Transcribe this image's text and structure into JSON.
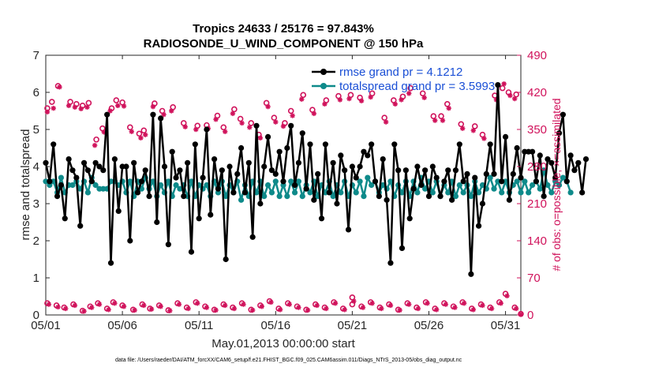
{
  "chart_data": {
    "type": "line",
    "title": "Tropics 24633 / 25176 = 97.843%",
    "subtitle": "RADIOSONDE_U_WIND_COMPONENT @ 150 hPa",
    "xlabel": "May.01,2013 00:00:00 start",
    "ylabel_left": "rmse and totalspread",
    "ylabel_right": "# of obs: o=possible; ×=assimilated",
    "footnote": "data file: /Users/raeder/DAI/ATM_forcXX/CAM6_setup/f.e21.FHIST_BGC.f09_025.CAM6assim.011/Diags_NTrS_2013-05/obs_diag_output.nc",
    "x_ticks": [
      1,
      6,
      11,
      16,
      21,
      26,
      31
    ],
    "x_tick_labels": [
      "05/01",
      "05/06",
      "05/11",
      "05/16",
      "05/21",
      "05/26",
      "05/31"
    ],
    "xlim": [
      1,
      32
    ],
    "ylim_left": [
      0,
      7
    ],
    "y_ticks_left": [
      0,
      1,
      2,
      3,
      4,
      5,
      6,
      7
    ],
    "ylim_right": [
      0,
      490
    ],
    "y_ticks_right": [
      0,
      70,
      140,
      210,
      280,
      350,
      420,
      490
    ],
    "colors": {
      "rmse": "#000000",
      "spread": "#0e8a8a",
      "obs": "#d0125b",
      "legend_text": "#1a4fd6"
    },
    "series": [
      {
        "name": "rmse",
        "legend": "rmse grand pr = 4.1212",
        "axis": "left",
        "values": [
          4.1,
          3.6,
          4.6,
          3.2,
          3.5,
          2.6,
          4.2,
          3.9,
          3.7,
          2.4,
          4.1,
          3.9,
          3.6,
          4.1,
          4.0,
          3.9,
          5.4,
          1.4,
          4.2,
          2.8,
          4.0,
          4.0,
          2.0,
          4.1,
          3.3,
          3.6,
          3.9,
          3.2,
          5.4,
          2.5,
          5.3,
          4.0,
          1.9,
          4.4,
          3.7,
          3.9,
          3.2,
          4.1,
          1.7,
          4.6,
          2.6,
          3.7,
          5.0,
          2.7,
          4.2,
          3.4,
          3.9,
          1.5,
          4.0,
          3.3,
          3.8,
          4.5,
          3.3,
          4.1,
          2.1,
          5.1,
          3.0,
          4.0,
          4.8,
          3.9,
          3.8,
          4.4,
          3.6,
          4.5,
          5.1,
          3.5,
          4.1,
          4.9,
          3.4,
          4.6,
          3.1,
          3.8,
          2.6,
          4.6,
          3.3,
          4.1,
          3.0,
          4.3,
          3.9,
          2.3,
          4.0,
          3.7,
          4.0,
          4.4,
          4.3,
          4.6,
          3.6,
          3.2,
          4.2,
          3.1,
          1.4,
          4.6,
          3.9,
          1.8,
          3.9,
          2.6,
          3.4,
          4.0,
          3.5,
          3.9,
          3.2,
          4.0,
          3.7,
          3.2,
          3.6,
          3.9,
          3.1,
          3.9,
          4.6,
          3.6,
          3.8,
          1.1,
          3.7,
          2.4,
          3.0,
          3.8,
          4.6,
          3.8,
          6.2,
          3.6,
          4.8,
          3.1,
          3.8,
          4.5,
          3.7,
          4.4,
          4.4,
          4.4,
          3.6,
          4.3,
          3.2,
          4.2,
          4.1,
          3.7,
          4.9,
          5.4,
          3.6,
          4.3,
          3.9,
          4.1,
          3.3,
          4.2
        ],
        "values_note": "136 points at 6-hourly intervals starting 05/01 00Z"
      },
      {
        "name": "totalspread",
        "legend": "totalspread grand pr = 3.5993",
        "axis": "left",
        "values": [
          3.6,
          3.5,
          3.6,
          3.3,
          3.7,
          3.3,
          3.5,
          3.5,
          3.6,
          3.4,
          3.6,
          3.3,
          3.7,
          3.5,
          3.4,
          3.4,
          3.4,
          3.6,
          3.6,
          3.5,
          3.6,
          3.3,
          3.6,
          3.2,
          3.6,
          3.4,
          3.7,
          3.4,
          3.6,
          3.2,
          3.5,
          3.3,
          3.6,
          3.2,
          3.5,
          3.4,
          3.5,
          3.2,
          3.6,
          3.2,
          3.5,
          3.4,
          3.5,
          3.2,
          3.6,
          3.3,
          3.6,
          3.2,
          3.5,
          3.3,
          3.6,
          3.1,
          3.5,
          3.2,
          3.6,
          3.3,
          3.6,
          3.2,
          3.5,
          3.3,
          3.6,
          3.2,
          3.5,
          3.2,
          3.6,
          3.3,
          3.6,
          3.2,
          3.5,
          3.3,
          3.6,
          3.2,
          3.5,
          3.3,
          3.6,
          3.2,
          3.5,
          3.3,
          3.6,
          3.2,
          3.5,
          3.3,
          3.6,
          3.2,
          3.7,
          3.5,
          3.6,
          3.3,
          3.5,
          3.4,
          3.6,
          3.2,
          3.5,
          3.3,
          3.6,
          3.2,
          3.6,
          3.3,
          3.7,
          3.4,
          3.6,
          3.3,
          3.6,
          3.2,
          3.5,
          3.3,
          3.6,
          3.2,
          3.5,
          3.3,
          3.5,
          3.2,
          3.6,
          3.3,
          3.5,
          3.4,
          3.7,
          3.4,
          3.6,
          3.3,
          3.6,
          3.3,
          3.5,
          3.6,
          3.3,
          3.6,
          3.3,
          3.5,
          3.6,
          3.4,
          3.9,
          3.5,
          3.3,
          3.6,
          3.5,
          3.7,
          3.6,
          3.3
        ]
      },
      {
        "name": "obs possible (high)",
        "axis": "right",
        "marker": "o",
        "points": [
          [
            1.1,
            390
          ],
          [
            1.4,
            402
          ],
          [
            1.8,
            432
          ],
          [
            2.6,
            402
          ],
          [
            3.0,
            398
          ],
          [
            3.4,
            395
          ],
          [
            3.8,
            400
          ],
          [
            4.3,
            331
          ],
          [
            4.7,
            352
          ],
          [
            5.3,
            390
          ],
          [
            5.6,
            405
          ],
          [
            6.0,
            401
          ],
          [
            6.5,
            354
          ],
          [
            7.1,
            342
          ],
          [
            7.4,
            348
          ],
          [
            8.1,
            399
          ],
          [
            8.6,
            385
          ],
          [
            9.3,
            392
          ],
          [
            10.0,
            362
          ],
          [
            10.9,
            357
          ],
          [
            11.5,
            358
          ],
          [
            12.2,
            376
          ],
          [
            12.6,
            354
          ],
          [
            13.3,
            388
          ],
          [
            13.7,
            370
          ],
          [
            14.4,
            362
          ],
          [
            14.9,
            340
          ],
          [
            15.4,
            400
          ],
          [
            15.9,
            372
          ],
          [
            16.6,
            362
          ],
          [
            17.0,
            385
          ],
          [
            17.8,
            415
          ],
          [
            18.4,
            387
          ],
          [
            19.3,
            405
          ],
          [
            20.1,
            413
          ],
          [
            20.9,
            415
          ],
          [
            21.5,
            410
          ],
          [
            22.3,
            418
          ],
          [
            23.1,
            372
          ],
          [
            23.7,
            405
          ],
          [
            24.3,
            412
          ],
          [
            24.8,
            428
          ],
          [
            25.6,
            418
          ],
          [
            26.3,
            375
          ],
          [
            26.8,
            375
          ],
          [
            27.2,
            398
          ],
          [
            28.1,
            360
          ],
          [
            29.0,
            356
          ],
          [
            29.5,
            340
          ],
          [
            30.3,
            414
          ],
          [
            30.8,
            428
          ],
          [
            31.2,
            420
          ],
          [
            31.7,
            416
          ]
        ]
      },
      {
        "name": "obs assimilated (high)",
        "axis": "right",
        "marker": "asterisk",
        "points": [
          [
            1.1,
            383
          ],
          [
            1.5,
            390
          ],
          [
            1.9,
            430
          ],
          [
            2.5,
            395
          ],
          [
            2.9,
            392
          ],
          [
            3.3,
            389
          ],
          [
            3.7,
            392
          ],
          [
            4.2,
            320
          ],
          [
            4.8,
            345
          ],
          [
            5.2,
            385
          ],
          [
            5.7,
            395
          ],
          [
            6.1,
            394
          ],
          [
            6.6,
            346
          ],
          [
            7.2,
            334
          ],
          [
            7.5,
            340
          ],
          [
            8.0,
            393
          ],
          [
            8.7,
            378
          ],
          [
            9.2,
            385
          ],
          [
            10.1,
            355
          ],
          [
            10.8,
            350
          ],
          [
            11.6,
            352
          ],
          [
            12.1,
            369
          ],
          [
            12.7,
            346
          ],
          [
            13.2,
            380
          ],
          [
            13.8,
            362
          ],
          [
            14.3,
            354
          ],
          [
            15.0,
            334
          ],
          [
            15.5,
            393
          ],
          [
            16.0,
            364
          ],
          [
            16.5,
            356
          ],
          [
            17.1,
            376
          ],
          [
            17.7,
            407
          ],
          [
            18.5,
            380
          ],
          [
            19.2,
            398
          ],
          [
            20.2,
            406
          ],
          [
            20.8,
            408
          ],
          [
            21.6,
            404
          ],
          [
            22.2,
            411
          ],
          [
            23.2,
            364
          ],
          [
            23.8,
            398
          ],
          [
            24.2,
            406
          ],
          [
            24.7,
            418
          ],
          [
            25.7,
            410
          ],
          [
            26.4,
            367
          ],
          [
            26.9,
            367
          ],
          [
            27.3,
            390
          ],
          [
            28.2,
            352
          ],
          [
            28.9,
            348
          ],
          [
            29.6,
            333
          ],
          [
            30.4,
            406
          ],
          [
            30.9,
            436
          ],
          [
            31.3,
            414
          ],
          [
            31.6,
            408
          ]
        ]
      },
      {
        "name": "obs possible (low)",
        "axis": "right",
        "marker": "o",
        "points": [
          [
            1.1,
            22
          ],
          [
            1.7,
            18
          ],
          [
            2.2,
            14
          ],
          [
            2.8,
            20
          ],
          [
            3.4,
            8
          ],
          [
            3.9,
            16
          ],
          [
            4.4,
            22
          ],
          [
            5.0,
            12
          ],
          [
            5.4,
            24
          ],
          [
            6.0,
            18
          ],
          [
            6.7,
            10
          ],
          [
            7.3,
            20
          ],
          [
            7.8,
            12
          ],
          [
            8.4,
            18
          ],
          [
            9.0,
            9
          ],
          [
            9.6,
            22
          ],
          [
            10.2,
            14
          ],
          [
            10.8,
            24
          ],
          [
            11.4,
            16
          ],
          [
            12.0,
            10
          ],
          [
            12.6,
            20
          ],
          [
            13.2,
            14
          ],
          [
            13.8,
            22
          ],
          [
            14.4,
            10
          ],
          [
            15.0,
            18
          ],
          [
            15.6,
            26
          ],
          [
            16.2,
            12
          ],
          [
            16.8,
            22
          ],
          [
            17.4,
            16
          ],
          [
            18.0,
            10
          ],
          [
            18.6,
            20
          ],
          [
            19.2,
            14
          ],
          [
            19.8,
            24
          ],
          [
            20.4,
            12
          ],
          [
            21.0,
            20
          ],
          [
            21.0,
            33
          ],
          [
            21.6,
            16
          ],
          [
            22.2,
            24
          ],
          [
            22.8,
            14
          ],
          [
            23.4,
            20
          ],
          [
            24.0,
            10
          ],
          [
            24.6,
            22
          ],
          [
            25.2,
            14
          ],
          [
            25.8,
            24
          ],
          [
            26.4,
            12
          ],
          [
            27.0,
            22
          ],
          [
            27.6,
            16
          ],
          [
            28.2,
            24
          ],
          [
            28.8,
            12
          ],
          [
            29.4,
            20
          ],
          [
            30.0,
            14
          ],
          [
            30.6,
            24
          ],
          [
            31.0,
            40
          ],
          [
            31.6,
            14
          ],
          [
            32.0,
            2
          ]
        ]
      },
      {
        "name": "obs assimilated (low)",
        "axis": "right",
        "marker": "asterisk",
        "points": [
          [
            1.2,
            20
          ],
          [
            1.8,
            15
          ],
          [
            2.3,
            12
          ],
          [
            2.9,
            18
          ],
          [
            3.5,
            7
          ],
          [
            4.0,
            14
          ],
          [
            4.5,
            20
          ],
          [
            5.1,
            10
          ],
          [
            5.5,
            22
          ],
          [
            6.1,
            16
          ],
          [
            6.8,
            9
          ],
          [
            7.4,
            18
          ],
          [
            7.9,
            11
          ],
          [
            8.5,
            16
          ],
          [
            9.1,
            8
          ],
          [
            9.7,
            20
          ],
          [
            10.3,
            12
          ],
          [
            10.9,
            22
          ],
          [
            11.5,
            14
          ],
          [
            12.1,
            9
          ],
          [
            12.7,
            18
          ],
          [
            13.3,
            12
          ],
          [
            13.9,
            20
          ],
          [
            14.5,
            9
          ],
          [
            15.1,
            16
          ],
          [
            15.7,
            24
          ],
          [
            16.3,
            10
          ],
          [
            16.9,
            20
          ],
          [
            17.5,
            14
          ],
          [
            18.1,
            9
          ],
          [
            18.7,
            18
          ],
          [
            19.3,
            12
          ],
          [
            19.9,
            22
          ],
          [
            20.5,
            10
          ],
          [
            21.1,
            26
          ],
          [
            21.7,
            14
          ],
          [
            22.3,
            22
          ],
          [
            22.9,
            12
          ],
          [
            23.5,
            18
          ],
          [
            24.1,
            9
          ],
          [
            24.7,
            20
          ],
          [
            25.3,
            12
          ],
          [
            25.9,
            22
          ],
          [
            26.5,
            10
          ],
          [
            27.1,
            20
          ],
          [
            27.7,
            14
          ],
          [
            28.3,
            22
          ],
          [
            28.9,
            10
          ],
          [
            29.5,
            18
          ],
          [
            30.1,
            12
          ],
          [
            30.7,
            22
          ],
          [
            31.1,
            36
          ],
          [
            31.7,
            12
          ],
          [
            32.0,
            1
          ]
        ]
      }
    ]
  }
}
